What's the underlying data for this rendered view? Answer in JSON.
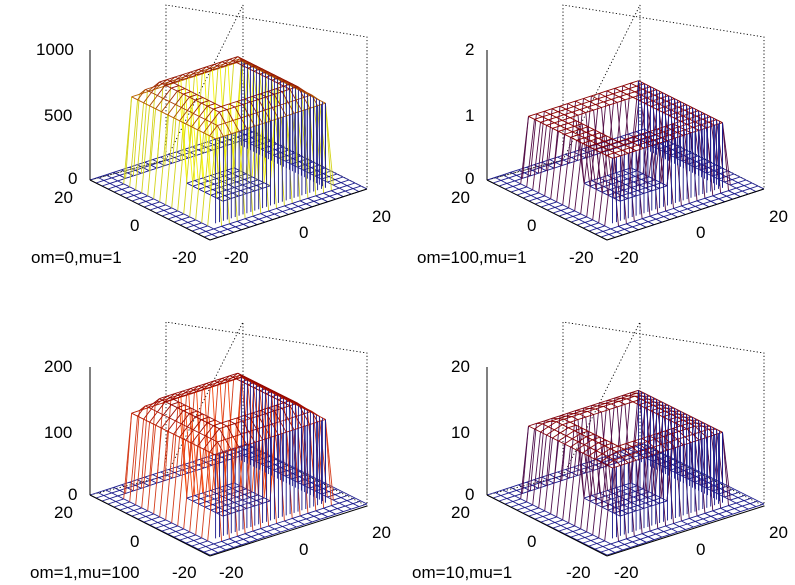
{
  "chart_data": [
    {
      "type": "surface",
      "xlabel": "om=0,mu=1",
      "z_ticks": [
        "0",
        "500",
        "1000"
      ],
      "z_values": [
        0,
        500,
        1000
      ],
      "zlim": [
        0,
        1000
      ],
      "x_ticks": [
        "-20",
        "0",
        "20"
      ],
      "y_ticks": [
        "-20",
        "0",
        "20"
      ],
      "xlim": [
        -20,
        20
      ],
      "ylim": [
        -20,
        20
      ],
      "shape": "square plateau with central square hole",
      "plateau_height": 650,
      "rim_height": 800,
      "colormap": [
        "#1a1a8c",
        "#ffff00",
        "#8b0000"
      ]
    },
    {
      "type": "surface",
      "xlabel": "om=100,mu=1",
      "z_ticks": [
        "0",
        "1",
        "2"
      ],
      "z_values": [
        0,
        1,
        2
      ],
      "zlim": [
        0,
        2
      ],
      "x_ticks": [
        "-20",
        "0",
        "20"
      ],
      "y_ticks": [
        "-20",
        "0",
        "20"
      ],
      "xlim": [
        -20,
        20
      ],
      "ylim": [
        -20,
        20
      ],
      "shape": "square plateau with central square hole",
      "plateau_height": 1,
      "rim_height": 1,
      "colormap": [
        "#1a1a8c",
        "#8b0000"
      ]
    },
    {
      "type": "surface",
      "xlabel": "om=1,mu=100",
      "z_ticks": [
        "0",
        "100",
        "200"
      ],
      "z_values": [
        0,
        100,
        200
      ],
      "zlim": [
        0,
        200
      ],
      "x_ticks": [
        "-20",
        "0",
        "20"
      ],
      "y_ticks": [
        "-20",
        "0",
        "20"
      ],
      "xlim": [
        -20,
        20
      ],
      "ylim": [
        -20,
        20
      ],
      "shape": "square plateau with central square hole",
      "plateau_height": 130,
      "rim_height": 160,
      "colormap": [
        "#1a1a8c",
        "#ff4400",
        "#8b0000"
      ]
    },
    {
      "type": "surface",
      "xlabel": "om=10,mu=1",
      "z_ticks": [
        "0",
        "10",
        "20"
      ],
      "z_values": [
        0,
        10,
        20
      ],
      "zlim": [
        0,
        20
      ],
      "x_ticks": [
        "-20",
        "0",
        "20"
      ],
      "y_ticks": [
        "-20",
        "0",
        "20"
      ],
      "xlim": [
        -20,
        20
      ],
      "ylim": [
        -20,
        20
      ],
      "shape": "square plateau with central square hole",
      "plateau_height": 11,
      "rim_height": 12,
      "colormap": [
        "#1a1a8c",
        "#8b0000"
      ]
    }
  ]
}
